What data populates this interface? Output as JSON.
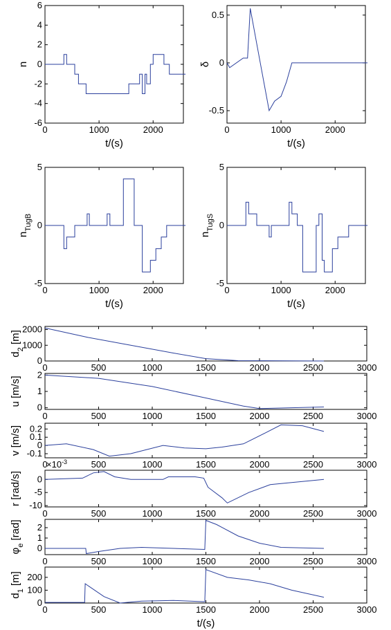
{
  "chart_data": [
    {
      "type": "line",
      "ylabel": [
        {
          "text": "n"
        }
      ],
      "xlabel": "t/(s)",
      "xlim": [
        0,
        2560
      ],
      "ylim": [
        -6,
        6
      ],
      "xticks": [
        0,
        1000,
        2000
      ],
      "yticks": [
        -6,
        -4,
        -2,
        0,
        2,
        4,
        6
      ],
      "color": "#2a3f9c",
      "x": [
        0,
        350,
        350,
        400,
        400,
        550,
        550,
        620,
        620,
        760,
        760,
        1550,
        1550,
        1750,
        1750,
        1800,
        1800,
        1850,
        1850,
        1880,
        1880,
        1950,
        1950,
        2000,
        2000,
        2200,
        2200,
        2300,
        2300,
        2600
      ],
      "values": [
        0,
        0,
        1,
        1,
        0,
        0,
        -1,
        -1,
        -2,
        -2,
        -3,
        -3,
        -2,
        -2,
        -1,
        -1,
        -3,
        -3,
        -1,
        -1,
        -2,
        -2,
        0,
        0,
        1,
        1,
        0,
        0,
        -1,
        -1
      ]
    },
    {
      "type": "line",
      "ylabel": [
        {
          "text": "δ"
        }
      ],
      "xlabel": "t/(s)",
      "xlim": [
        0,
        2560
      ],
      "ylim": [
        -0.63,
        0.6
      ],
      "xticks": [
        0,
        1000,
        2000
      ],
      "yticks": [
        -0.5,
        0,
        0.5
      ],
      "color": "#2a3f9c",
      "x": [
        0,
        50,
        300,
        380,
        430,
        550,
        780,
        880,
        1000,
        1100,
        1200,
        2600
      ],
      "values": [
        0,
        -0.05,
        0.05,
        0.05,
        0.57,
        0.2,
        -0.5,
        -0.4,
        -0.35,
        -0.2,
        0,
        0
      ]
    },
    {
      "type": "line",
      "ylabel": [
        {
          "text": "n"
        },
        {
          "text": "TugB",
          "style": "sub"
        }
      ],
      "xlabel": "t/(s)",
      "xlim": [
        0,
        2560
      ],
      "ylim": [
        -5,
        5
      ],
      "xticks": [
        0,
        1000,
        2000
      ],
      "yticks": [
        -5,
        0,
        5
      ],
      "color": "#2a3f9c",
      "x": [
        0,
        350,
        350,
        400,
        400,
        550,
        550,
        780,
        780,
        820,
        820,
        1150,
        1150,
        1200,
        1200,
        1450,
        1450,
        1650,
        1650,
        1800,
        1800,
        1950,
        1950,
        2050,
        2050,
        2150,
        2150,
        2250,
        2250,
        2600
      ],
      "values": [
        0,
        0,
        -2,
        -2,
        -1,
        -1,
        0,
        0,
        1,
        1,
        0,
        0,
        1,
        1,
        0,
        0,
        4,
        4,
        0,
        0,
        -4,
        -4,
        -3,
        -3,
        -2,
        -2,
        -1,
        -1,
        0,
        0
      ]
    },
    {
      "type": "line",
      "ylabel": [
        {
          "text": "n"
        },
        {
          "text": "TugS",
          "style": "sub"
        }
      ],
      "xlabel": "t/(s)",
      "xlim": [
        0,
        2560
      ],
      "ylim": [
        -5,
        5
      ],
      "xticks": [
        0,
        1000,
        2000
      ],
      "yticks": [
        -5,
        0,
        5
      ],
      "color": "#2a3f9c",
      "x": [
        0,
        350,
        350,
        400,
        400,
        550,
        550,
        780,
        780,
        820,
        820,
        1150,
        1150,
        1200,
        1200,
        1300,
        1300,
        1400,
        1400,
        1650,
        1650,
        1700,
        1700,
        1760,
        1760,
        1800,
        1800,
        1950,
        1950,
        2050,
        2050,
        2250,
        2250,
        2600
      ],
      "values": [
        0,
        0,
        2,
        2,
        1,
        1,
        0,
        0,
        -1,
        -1,
        0,
        0,
        2,
        2,
        1,
        1,
        0,
        0,
        -4,
        -4,
        0,
        0,
        1,
        1,
        -3,
        -3,
        -4,
        -4,
        -2,
        -2,
        -1,
        -1,
        0,
        0
      ]
    },
    {
      "type": "line",
      "ylabel": [
        {
          "text": "d"
        },
        {
          "text": "2",
          "style": "sub"
        },
        {
          "text": " [m]"
        }
      ],
      "xlim": [
        0,
        3000
      ],
      "ylim": [
        0,
        2200
      ],
      "xticks": [
        0,
        500,
        1000,
        1500,
        2000,
        2500,
        3000
      ],
      "yticks": [
        0,
        1000,
        2000
      ],
      "color": "#2a3f9c",
      "x": [
        0,
        400,
        800,
        1200,
        1500,
        1800,
        2600
      ],
      "values": [
        2100,
        1500,
        1000,
        500,
        150,
        20,
        0
      ]
    },
    {
      "type": "line",
      "ylabel": [
        {
          "text": "u [m/s]"
        }
      ],
      "xlim": [
        0,
        3000
      ],
      "ylim": [
        -0.1,
        2.1
      ],
      "xticks": [
        0,
        500,
        1000,
        1500,
        2000,
        2500,
        3000
      ],
      "yticks": [
        0,
        1,
        2
      ],
      "color": "#2a3f9c",
      "x": [
        0,
        500,
        1000,
        1500,
        1850,
        2000,
        2300,
        2600
      ],
      "values": [
        2,
        1.8,
        1.3,
        0.6,
        0.1,
        -0.05,
        0,
        0.05
      ]
    },
    {
      "type": "line",
      "ylabel": [
        {
          "text": "v [m/s]"
        }
      ],
      "xlim": [
        0,
        3000
      ],
      "ylim": [
        -0.15,
        0.27
      ],
      "xticks": [
        0,
        500,
        1000,
        1500,
        2000,
        2500,
        3000
      ],
      "yticks": [
        -0.1,
        0,
        0.1,
        0.2
      ],
      "color": "#2a3f9c",
      "x": [
        0,
        200,
        450,
        600,
        800,
        1100,
        1300,
        1500,
        1650,
        1850,
        2050,
        2200,
        2400,
        2600
      ],
      "values": [
        0,
        0.02,
        -0.05,
        -0.13,
        -0.1,
        0,
        -0.03,
        -0.04,
        -0.02,
        0.02,
        0.15,
        0.25,
        0.24,
        0.17
      ]
    },
    {
      "type": "line",
      "ylabel": [
        {
          "text": "r [rad/s]"
        }
      ],
      "exponent_label": [
        {
          "text": "×10"
        },
        {
          "text": "-3",
          "style": "super"
        }
      ],
      "xlim": [
        0,
        3000
      ],
      "ylim": [
        -10.5,
        3.5
      ],
      "xticks": [
        0,
        500,
        1000,
        1500,
        2000,
        2500,
        3000
      ],
      "yticks": [
        -10,
        -5,
        0
      ],
      "color": "#2a3f9c",
      "x": [
        0,
        350,
        450,
        550,
        650,
        800,
        1100,
        1150,
        1400,
        1480,
        1520,
        1650,
        1700,
        1900,
        2100,
        2600
      ],
      "values": [
        0,
        0.5,
        2.5,
        3,
        1,
        0,
        0,
        1,
        1,
        0.5,
        -3,
        -7,
        -9,
        -5,
        -2,
        0
      ]
    },
    {
      "type": "line",
      "ylabel": [
        {
          "text": "φ"
        },
        {
          "text": "e",
          "style": "sub"
        },
        {
          "text": " [rad]"
        }
      ],
      "xlim": [
        0,
        3000
      ],
      "ylim": [
        -0.6,
        2.8
      ],
      "xticks": [
        0,
        500,
        1000,
        1500,
        2000,
        2500,
        3000
      ],
      "yticks": [
        0,
        1,
        2
      ],
      "color": "#2a3f9c",
      "x": [
        0,
        380,
        385,
        500,
        700,
        900,
        1200,
        1490,
        1500,
        1600,
        1800,
        2000,
        2200,
        2600
      ],
      "values": [
        0,
        0,
        -0.5,
        -0.3,
        0,
        0.1,
        0,
        -0.1,
        2.7,
        2.3,
        1.2,
        0.5,
        0.1,
        0
      ]
    },
    {
      "type": "line",
      "ylabel": [
        {
          "text": "d"
        },
        {
          "text": "1",
          "style": "sub"
        },
        {
          "text": " [m]"
        }
      ],
      "xlabel": "t/(s)",
      "xlim": [
        0,
        3000
      ],
      "ylim": [
        0,
        280
      ],
      "xticks": [
        0,
        500,
        1000,
        1500,
        2000,
        2500,
        3000
      ],
      "yticks": [
        0,
        100,
        200
      ],
      "color": "#2a3f9c",
      "x": [
        0,
        370,
        375,
        550,
        700,
        900,
        1200,
        1490,
        1500,
        1700,
        1900,
        2100,
        2300,
        2600
      ],
      "values": [
        5,
        5,
        150,
        50,
        0,
        15,
        20,
        10,
        260,
        200,
        180,
        150,
        100,
        45
      ]
    }
  ]
}
